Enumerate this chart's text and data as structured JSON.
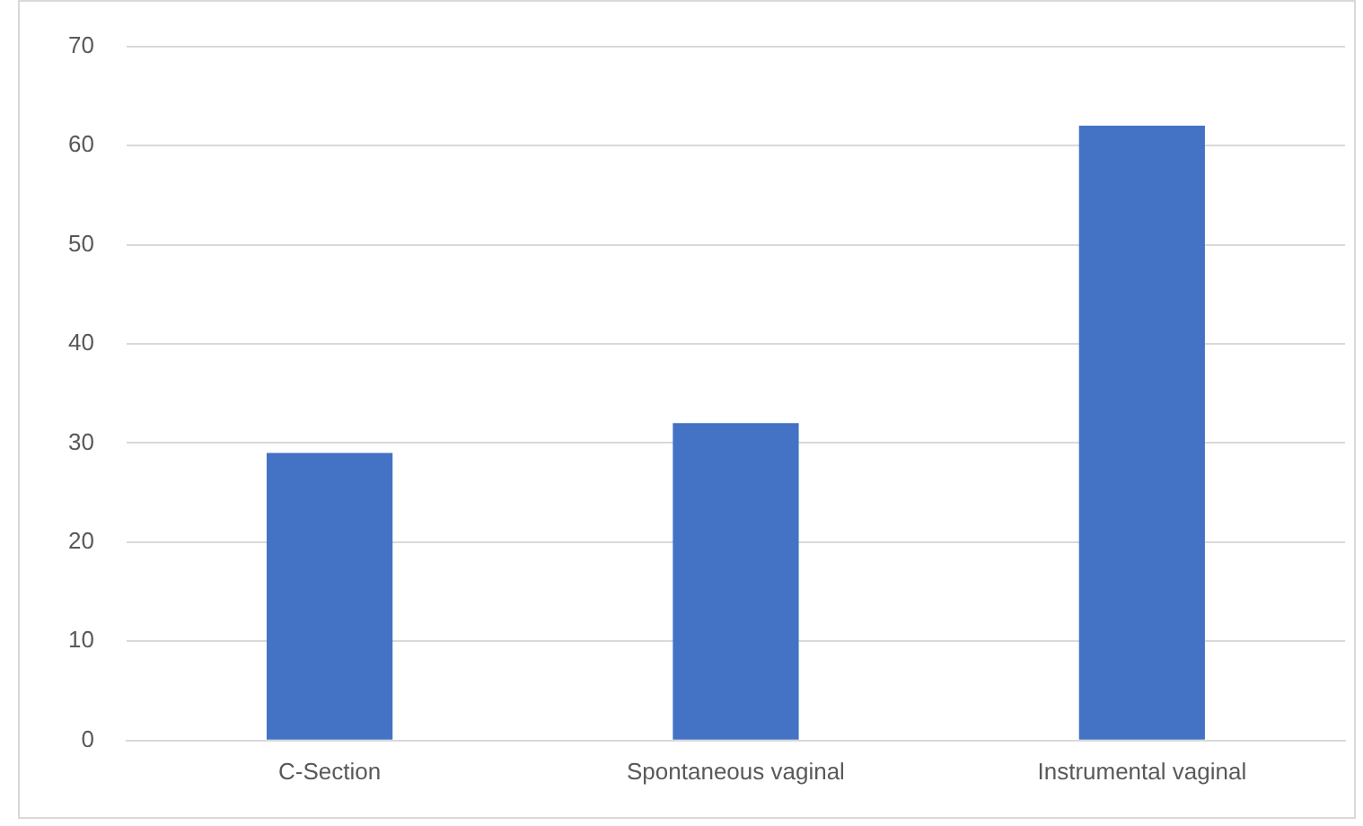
{
  "chart_data": {
    "type": "bar",
    "categories": [
      "C-Section",
      "Spontaneous vaginal",
      "Instrumental vaginal"
    ],
    "values": [
      29,
      32,
      62
    ],
    "color": "#4472c4",
    "ylim": [
      0,
      70
    ],
    "yticks": [
      0,
      10,
      20,
      30,
      40,
      50,
      60,
      70
    ],
    "grid": "y"
  }
}
